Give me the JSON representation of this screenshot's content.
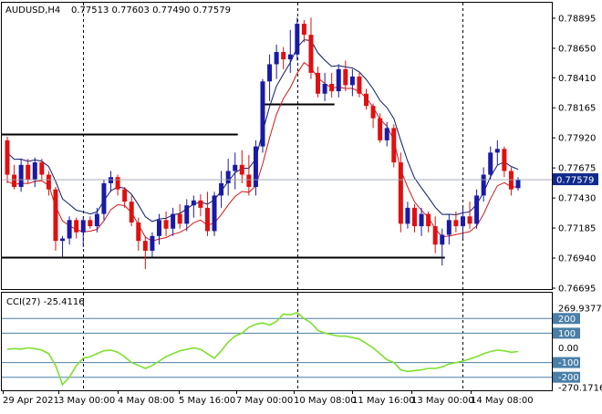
{
  "header": {
    "title": "AUDUSD,H4",
    "quote": "0.77513 0.77603 0.77490 0.77579"
  },
  "cci_header": "CCI(27) -25.4116",
  "colors": {
    "bull_body": "#1a1aa6",
    "bear_body": "#e01010",
    "upper_band": "#0a1a66",
    "lower_band": "#d01818",
    "stop_red": "#dd1111",
    "stop_blue": "#1a2acc",
    "cci_line": "#7ee02c",
    "level_line": "#4a7fa8",
    "current_price_bg": "#102a8c"
  },
  "chart_data": {
    "type": "candlestick",
    "symbol": "AUDUSD",
    "timeframe": "H4",
    "price_axis": {
      "ticks": [
        "0.78895",
        "0.78650",
        "0.78410",
        "0.78165",
        "0.77920",
        "0.77675",
        "0.77430",
        "0.77185",
        "0.76940",
        "0.76695"
      ],
      "range": [
        0.76695,
        0.78895
      ],
      "current_price_label": "0.77579",
      "current_price": 0.77579
    },
    "time_axis": {
      "labels": [
        "29 Apr 2021",
        "3 May 00:00",
        "4 May 08:00",
        "5 May 16:00",
        "7 May 00:00",
        "10 May 08:00",
        "11 May 16:00",
        "13 May 00:00",
        "14 May 08:00"
      ]
    },
    "candles": [
      [
        0.779,
        0.7793,
        0.7755,
        0.7762
      ],
      [
        0.7762,
        0.777,
        0.775,
        0.7752
      ],
      [
        0.7752,
        0.7775,
        0.7748,
        0.777
      ],
      [
        0.777,
        0.7775,
        0.7755,
        0.7758
      ],
      [
        0.7758,
        0.7776,
        0.7752,
        0.7772
      ],
      [
        0.7772,
        0.7775,
        0.7758,
        0.7762
      ],
      [
        0.7762,
        0.7765,
        0.7745,
        0.775
      ],
      [
        0.775,
        0.7752,
        0.77,
        0.7708
      ],
      [
        0.7708,
        0.7712,
        0.7695,
        0.771
      ],
      [
        0.771,
        0.7728,
        0.7705,
        0.7725
      ],
      [
        0.7725,
        0.7727,
        0.771,
        0.7715
      ],
      [
        0.7715,
        0.7728,
        0.7703,
        0.7725
      ],
      [
        0.7725,
        0.7728,
        0.7718,
        0.772
      ],
      [
        0.772,
        0.7735,
        0.7715,
        0.773
      ],
      [
        0.773,
        0.7758,
        0.7725,
        0.7755
      ],
      [
        0.7755,
        0.7765,
        0.7748,
        0.776
      ],
      [
        0.776,
        0.7762,
        0.7745,
        0.775
      ],
      [
        0.775,
        0.7752,
        0.7735,
        0.774
      ],
      [
        0.774,
        0.7745,
        0.772,
        0.7723
      ],
      [
        0.7723,
        0.7727,
        0.77,
        0.7708
      ],
      [
        0.7708,
        0.7712,
        0.7685,
        0.77
      ],
      [
        0.77,
        0.7715,
        0.7695,
        0.7712
      ],
      [
        0.7712,
        0.773,
        0.7705,
        0.7725
      ],
      [
        0.7725,
        0.7732,
        0.7712,
        0.7718
      ],
      [
        0.7718,
        0.7735,
        0.7712,
        0.773
      ],
      [
        0.773,
        0.7738,
        0.7718,
        0.7722
      ],
      [
        0.7722,
        0.7742,
        0.7716,
        0.7737
      ],
      [
        0.7737,
        0.7745,
        0.7727,
        0.7741
      ],
      [
        0.7741,
        0.7746,
        0.7728,
        0.7735
      ],
      [
        0.7735,
        0.7748,
        0.7712,
        0.7716
      ],
      [
        0.7716,
        0.7748,
        0.7712,
        0.7745
      ],
      [
        0.7745,
        0.7765,
        0.7735,
        0.7755
      ],
      [
        0.7755,
        0.7775,
        0.7745,
        0.7765
      ],
      [
        0.7765,
        0.778,
        0.775,
        0.777
      ],
      [
        0.777,
        0.7782,
        0.7755,
        0.7762
      ],
      [
        0.7762,
        0.7778,
        0.7745,
        0.7752
      ],
      [
        0.7752,
        0.779,
        0.7745,
        0.7785
      ],
      [
        0.7785,
        0.784,
        0.778,
        0.7838
      ],
      [
        0.7838,
        0.786,
        0.7822,
        0.7852
      ],
      [
        0.7852,
        0.7868,
        0.784,
        0.7862
      ],
      [
        0.7862,
        0.7866,
        0.7848,
        0.7856
      ],
      [
        0.7856,
        0.788,
        0.7845,
        0.786
      ],
      [
        0.786,
        0.789,
        0.7855,
        0.7885
      ],
      [
        0.7885,
        0.7888,
        0.787,
        0.7876
      ],
      [
        0.7876,
        0.789,
        0.784,
        0.7845
      ],
      [
        0.7845,
        0.785,
        0.7825,
        0.7828
      ],
      [
        0.7828,
        0.7845,
        0.7822,
        0.7836
      ],
      [
        0.7836,
        0.7845,
        0.7825,
        0.783
      ],
      [
        0.783,
        0.7852,
        0.7825,
        0.7848
      ],
      [
        0.7848,
        0.7855,
        0.783,
        0.7835
      ],
      [
        0.7835,
        0.7848,
        0.7826,
        0.7842
      ],
      [
        0.7842,
        0.7845,
        0.7825,
        0.7828
      ],
      [
        0.7828,
        0.7832,
        0.7815,
        0.7818
      ],
      [
        0.7818,
        0.782,
        0.78,
        0.7808
      ],
      [
        0.7808,
        0.7812,
        0.7788,
        0.779
      ],
      [
        0.779,
        0.7805,
        0.7785,
        0.78
      ],
      [
        0.78,
        0.7803,
        0.7768,
        0.7772
      ],
      [
        0.7772,
        0.778,
        0.7715,
        0.7722
      ],
      [
        0.7722,
        0.774,
        0.7718,
        0.7735
      ],
      [
        0.7735,
        0.7738,
        0.7715,
        0.772
      ],
      [
        0.772,
        0.7735,
        0.7712,
        0.773
      ],
      [
        0.773,
        0.7732,
        0.7715,
        0.772
      ],
      [
        0.772,
        0.7728,
        0.7698,
        0.7705
      ],
      [
        0.7705,
        0.7718,
        0.7688,
        0.7713
      ],
      [
        0.7713,
        0.773,
        0.7705,
        0.7725
      ],
      [
        0.7725,
        0.7732,
        0.7715,
        0.772
      ],
      [
        0.772,
        0.7735,
        0.771,
        0.7728
      ],
      [
        0.7728,
        0.774,
        0.7718,
        0.7722
      ],
      [
        0.7722,
        0.775,
        0.7718,
        0.7745
      ],
      [
        0.7745,
        0.7768,
        0.774,
        0.7762
      ],
      [
        0.7762,
        0.7785,
        0.7758,
        0.778
      ],
      [
        0.778,
        0.779,
        0.777,
        0.7783
      ],
      [
        0.7783,
        0.7785,
        0.776,
        0.7765
      ],
      [
        0.7765,
        0.7768,
        0.7745,
        0.775
      ],
      [
        0.7751,
        0.776,
        0.7749,
        0.7758
      ]
    ],
    "candle_fields": [
      "open",
      "high",
      "low",
      "close"
    ],
    "horizontal_lines": [
      0.7795,
      0.7695,
      0.782
    ],
    "horizontal_line_spans": [
      [
        0,
        33
      ],
      [
        0,
        63
      ],
      [
        38,
        47
      ]
    ],
    "vertical_dashed_at_candle": [
      11,
      42,
      66
    ],
    "cci": {
      "period": 27,
      "last": -25.4116,
      "axis_ticks": [
        "269.9377",
        "200",
        "100",
        "0.00",
        "-100",
        "-200",
        "-270.1716"
      ],
      "range": [
        -270.1716,
        269.9377
      ],
      "levels": [
        200,
        100,
        -100,
        -200
      ],
      "values": [
        -10,
        -5,
        -8,
        0,
        -5,
        -15,
        -40,
        -120,
        -250,
        -200,
        -120,
        -70,
        -60,
        -40,
        -20,
        -15,
        -30,
        -60,
        -100,
        -120,
        -140,
        -120,
        -90,
        -60,
        -40,
        -20,
        -10,
        0,
        -10,
        -40,
        -70,
        -20,
        40,
        80,
        100,
        140,
        160,
        170,
        155,
        180,
        230,
        225,
        240,
        200,
        170,
        120,
        100,
        90,
        80,
        80,
        70,
        60,
        30,
        0,
        -40,
        -80,
        -100,
        -150,
        -160,
        -155,
        -150,
        -140,
        -140,
        -130,
        -110,
        -100,
        -90,
        -75,
        -60,
        -40,
        -25,
        -15,
        -20,
        -30,
        -25
      ]
    }
  }
}
